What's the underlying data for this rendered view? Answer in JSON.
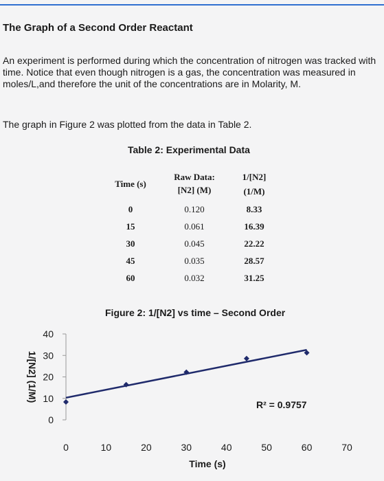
{
  "document": {
    "title": "The Graph of a Second Order Reactant",
    "paragraph": "An experiment is performed during which the concentration of nitrogen was tracked with time. Notice that even though nitrogen is a gas, the concentration was measured in moles/L,and therefore the unit of the concentrations are in Molarity, M.",
    "paragraph2": "The graph in Figure 2 was plotted from the data in Table 2."
  },
  "table": {
    "caption": "Table 2: Experimental Data",
    "headers": {
      "time": "Time (s)",
      "raw_line1": "Raw Data:",
      "raw_line2": "[N2] (M)",
      "inv_line1": "1/[N2]",
      "inv_line2": "(1/M)"
    },
    "rows": [
      {
        "time": "0",
        "raw": "0.120",
        "inv": "8.33"
      },
      {
        "time": "15",
        "raw": "0.061",
        "inv": "16.39"
      },
      {
        "time": "30",
        "raw": "0.045",
        "inv": "22.22"
      },
      {
        "time": "45",
        "raw": "0.035",
        "inv": "28.57"
      },
      {
        "time": "60",
        "raw": "0.032",
        "inv": "31.25"
      }
    ]
  },
  "chart_data": {
    "type": "scatter",
    "title": "Figure 2: 1/[N2] vs time – Second Order",
    "xlabel": "Time (s)",
    "ylabel": "1/[N2] (1/M)",
    "xlim": [
      0,
      70
    ],
    "ylim": [
      0,
      40
    ],
    "x_ticks": [
      "0",
      "10",
      "20",
      "30",
      "40",
      "50",
      "60",
      "70"
    ],
    "y_ticks": [
      "0",
      "10",
      "20",
      "30",
      "40"
    ],
    "points": [
      {
        "x": 0,
        "y": 8.33
      },
      {
        "x": 15,
        "y": 16.39
      },
      {
        "x": 30,
        "y": 22.22
      },
      {
        "x": 45,
        "y": 28.57
      },
      {
        "x": 60,
        "y": 31.25
      }
    ],
    "trendline": {
      "x0": 0,
      "y0": 10.3,
      "x1": 60,
      "y1": 32.6
    },
    "r_squared": "R² = 0.9757",
    "point_color": "#1f2a6b",
    "line_color": "#1f2a6b"
  }
}
